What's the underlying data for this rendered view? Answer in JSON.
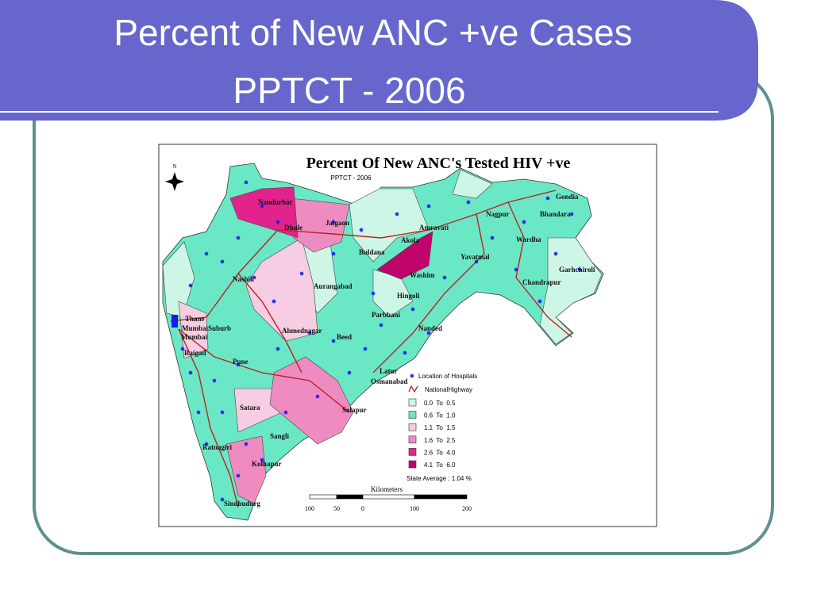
{
  "slide": {
    "title_lines": [
      "Percent of New ANC +ve Cases",
      "PPTCT - 2006"
    ]
  },
  "map": {
    "title": "Percent Of New ANC's Tested HIV +ve",
    "subtitle": "PPTCT - 2006",
    "north": "N",
    "districts": [
      "Nandurbar",
      "Dhule",
      "Jalgaon",
      "Nashik",
      "Aurangabad",
      "Buldana",
      "Akola",
      "Amravati",
      "Nagpur",
      "Bhandara",
      "Gondia",
      "Wardha",
      "Yavatmal",
      "Washim",
      "Garhchiroli",
      "Chandrapur",
      "Hingoli",
      "Parbhani",
      "Nanded",
      "Thane",
      "MumbaiSuburb",
      "Mumbai",
      "Raigad",
      "Pune",
      "Ahmednagar",
      "Beed",
      "Latur",
      "Osmanabad",
      "Solapur",
      "Satara",
      "Sangli",
      "Ratnagiri",
      "Kolhapur",
      "Sindhudurg"
    ],
    "legend": {
      "hospitals": "Location of Hospitals",
      "highway": "NationalHighway",
      "classes": [
        {
          "label": "0.0  To  0.5",
          "color": "#cdf6e6"
        },
        {
          "label": "0.6  To  1.0",
          "color": "#6ae8c6"
        },
        {
          "label": "1.1  To  1.5",
          "color": "#f6cde2"
        },
        {
          "label": "1.6  To  2.5",
          "color": "#ee8cc2"
        },
        {
          "label": "2.6  To  4.0",
          "color": "#e2238c"
        },
        {
          "label": "4.1  To  6.0",
          "color": "#c0046c"
        }
      ],
      "state_average": "State Average : 1.04 %"
    },
    "scale": {
      "unit": "Kilometers",
      "labels": [
        "100",
        "50",
        "0",
        "100",
        "200"
      ]
    }
  }
}
